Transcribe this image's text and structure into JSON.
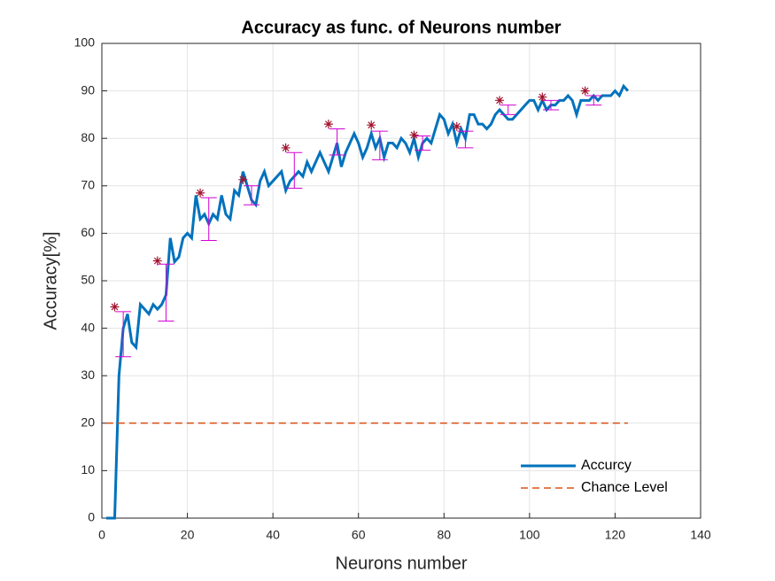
{
  "chart_data": {
    "type": "line",
    "title": "Accuracy as func. of Neurons number",
    "x_label": "Neurons number",
    "y_label": "Accuracy[%]",
    "xlim": [
      0,
      140
    ],
    "ylim": [
      0,
      100
    ],
    "xticks": [
      0,
      20,
      40,
      60,
      80,
      100,
      120,
      140
    ],
    "yticks": [
      0,
      10,
      20,
      30,
      40,
      50,
      60,
      70,
      80,
      90,
      100
    ],
    "grid": true,
    "legend": "lower right",
    "series": [
      {
        "name": "Accurcy",
        "color": "#0072bd",
        "dash": "solid",
        "x": [
          1,
          2,
          3,
          4,
          5,
          6,
          7,
          8,
          9,
          10,
          11,
          12,
          13,
          14,
          15,
          16,
          17,
          18,
          19,
          20,
          21,
          22,
          23,
          24,
          25,
          26,
          27,
          28,
          29,
          30,
          31,
          32,
          33,
          34,
          35,
          36,
          37,
          38,
          39,
          40,
          41,
          42,
          43,
          44,
          45,
          46,
          47,
          48,
          49,
          50,
          51,
          52,
          53,
          54,
          55,
          56,
          57,
          58,
          59,
          60,
          61,
          62,
          63,
          64,
          65,
          66,
          67,
          68,
          69,
          70,
          71,
          72,
          73,
          74,
          75,
          76,
          77,
          78,
          79,
          80,
          81,
          82,
          83,
          84,
          85,
          86,
          87,
          88,
          89,
          90,
          91,
          92,
          93,
          94,
          95,
          96,
          97,
          98,
          99,
          100,
          101,
          102,
          103,
          104,
          105,
          106,
          107,
          108,
          109,
          110,
          111,
          112,
          113,
          114,
          115,
          116,
          117,
          118,
          119,
          120,
          121,
          122,
          123
        ],
        "values": [
          0,
          0,
          0,
          30,
          40,
          43,
          37,
          36,
          45,
          44,
          43,
          45,
          44,
          45,
          47,
          59,
          54,
          55,
          59,
          60,
          59,
          68,
          63,
          64,
          62,
          64,
          63,
          68,
          64,
          63,
          69,
          68,
          73,
          70,
          67,
          66,
          71,
          73,
          70,
          71,
          72,
          73,
          69,
          71,
          72,
          73,
          72,
          75,
          73,
          75,
          77,
          75,
          73,
          76,
          79,
          74,
          77,
          79,
          81,
          79,
          76,
          78,
          81,
          78,
          80,
          76,
          79,
          79,
          78,
          80,
          79,
          77,
          80,
          76,
          79,
          80,
          79,
          82,
          85,
          84,
          81,
          83,
          79,
          82,
          80,
          85,
          85,
          83,
          83,
          82,
          83,
          85,
          86,
          85,
          84,
          84,
          85,
          86,
          87,
          88,
          88,
          86,
          88,
          86,
          87,
          87,
          88,
          88,
          89,
          88,
          85,
          88,
          88,
          88,
          89,
          88,
          89,
          89,
          89,
          90,
          89,
          91,
          90
        ]
      },
      {
        "name": "Chance Level",
        "color": "#d95319",
        "dash": "dashed",
        "x": [
          1,
          123
        ],
        "values": [
          20,
          20
        ]
      }
    ],
    "stars": {
      "color": "#a2142f",
      "x": [
        3,
        13,
        23,
        33,
        43,
        53,
        63,
        73,
        83,
        93,
        103,
        113
      ],
      "values": [
        44.5,
        54.2,
        68.5,
        71.3,
        78,
        83,
        82.8,
        80.7,
        82.5,
        88,
        88.7,
        90
      ]
    },
    "error_bars": {
      "color": "#d400d4",
      "x": [
        5,
        15,
        25,
        35,
        45,
        55,
        65,
        75,
        85,
        95,
        105,
        115
      ],
      "values": [
        38.75,
        47.5,
        63,
        68,
        73.25,
        79.25,
        78.5,
        79,
        79.75,
        86,
        87,
        88
      ],
      "errors": [
        4.75,
        6,
        4.5,
        2,
        3.75,
        2.75,
        3,
        1.5,
        1.75,
        1,
        1,
        1
      ]
    }
  }
}
